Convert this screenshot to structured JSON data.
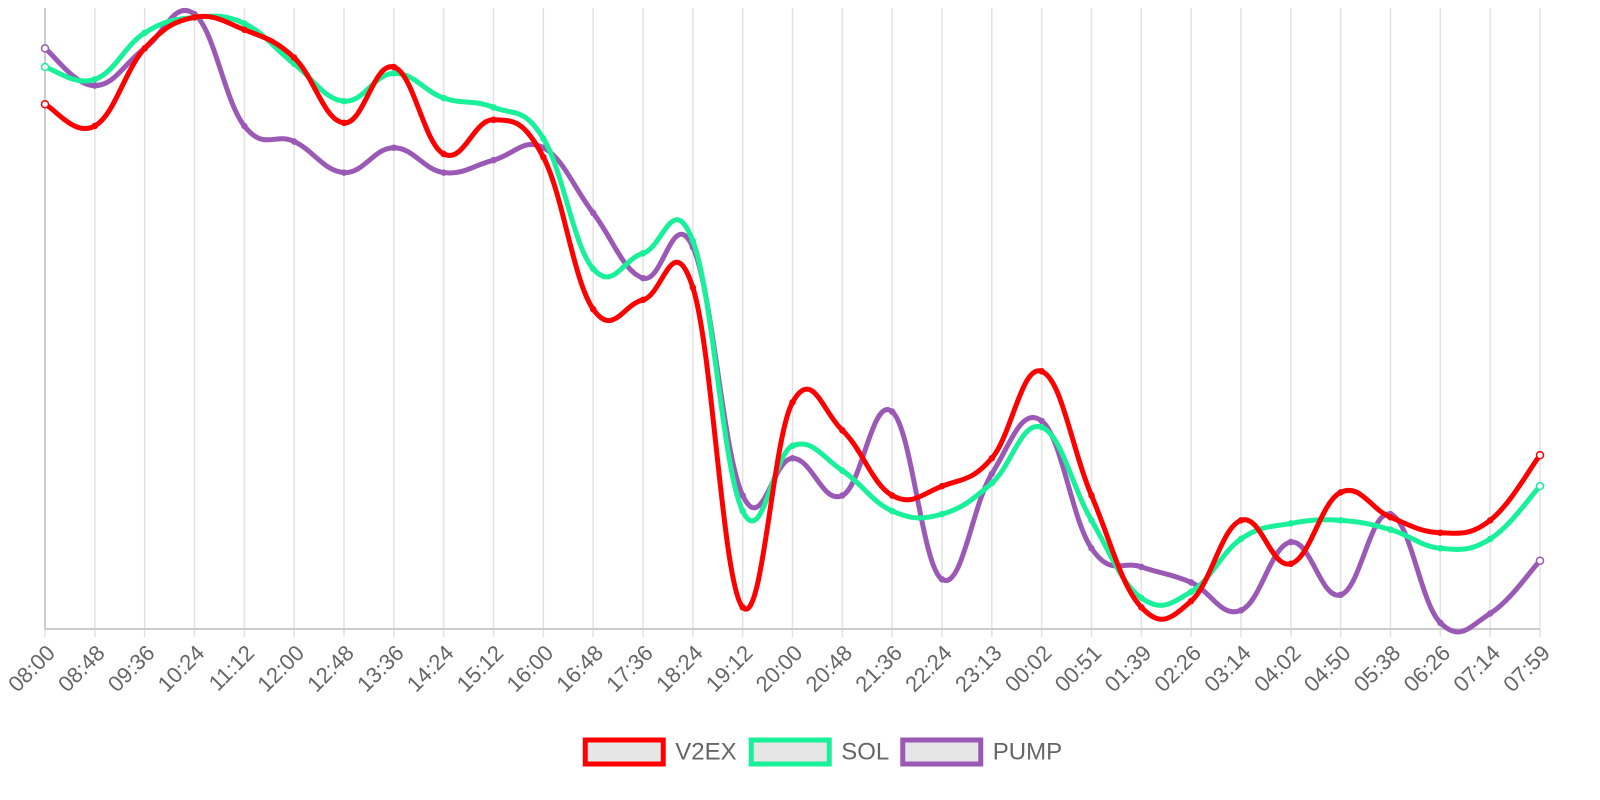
{
  "chart_data": {
    "type": "line",
    "title": "",
    "xlabel": "",
    "ylabel": "",
    "grid": "vertical",
    "legend": "bottom-center",
    "categories": [
      "08:00",
      "08:48",
      "09:36",
      "10:24",
      "11:12",
      "12:00",
      "12:48",
      "13:36",
      "14:24",
      "15:12",
      "16:00",
      "16:48",
      "17:36",
      "18:24",
      "19:12",
      "20:00",
      "20:48",
      "21:36",
      "22:24",
      "23:13",
      "00:02",
      "00:51",
      "01:39",
      "02:26",
      "03:14",
      "04:02",
      "04:50",
      "05:38",
      "06:26",
      "07:14",
      "07:59"
    ],
    "ylim": [
      0,
      100
    ],
    "series": [
      {
        "name": "V2EX",
        "color": "#ff0000",
        "values": [
          84.5,
          81,
          93.5,
          98.5,
          96.5,
          92,
          81.5,
          90.5,
          76.5,
          82,
          76,
          51.5,
          53,
          55,
          3.5,
          36.5,
          32,
          21.5,
          23,
          27.5,
          41.5,
          21.5,
          3.5,
          4.5,
          17.5,
          10.5,
          22,
          18,
          15.5,
          17.5,
          28
        ]
      },
      {
        "name": "SOL",
        "color": "#19f09a",
        "values": [
          90.5,
          88.5,
          96,
          98.5,
          97.5,
          91,
          85,
          89.5,
          85.5,
          84,
          79,
          58,
          60.5,
          62.5,
          19,
          29.5,
          25.5,
          19,
          18.5,
          23.5,
          32.5,
          17.5,
          5,
          6,
          14.5,
          17,
          17.5,
          16,
          13,
          14.5,
          23
        ]
      },
      {
        "name": "PUMP",
        "color": "#9b59b6",
        "values": [
          93.5,
          87.5,
          93.5,
          99,
          81,
          78.5,
          73.5,
          77.5,
          73.5,
          75.5,
          77.5,
          67,
          56.5,
          61.5,
          21.5,
          27.5,
          21.5,
          35,
          8,
          25,
          33.5,
          13,
          10,
          7.5,
          3,
          14,
          5.5,
          18.5,
          1,
          2.5,
          11
        ]
      }
    ]
  }
}
